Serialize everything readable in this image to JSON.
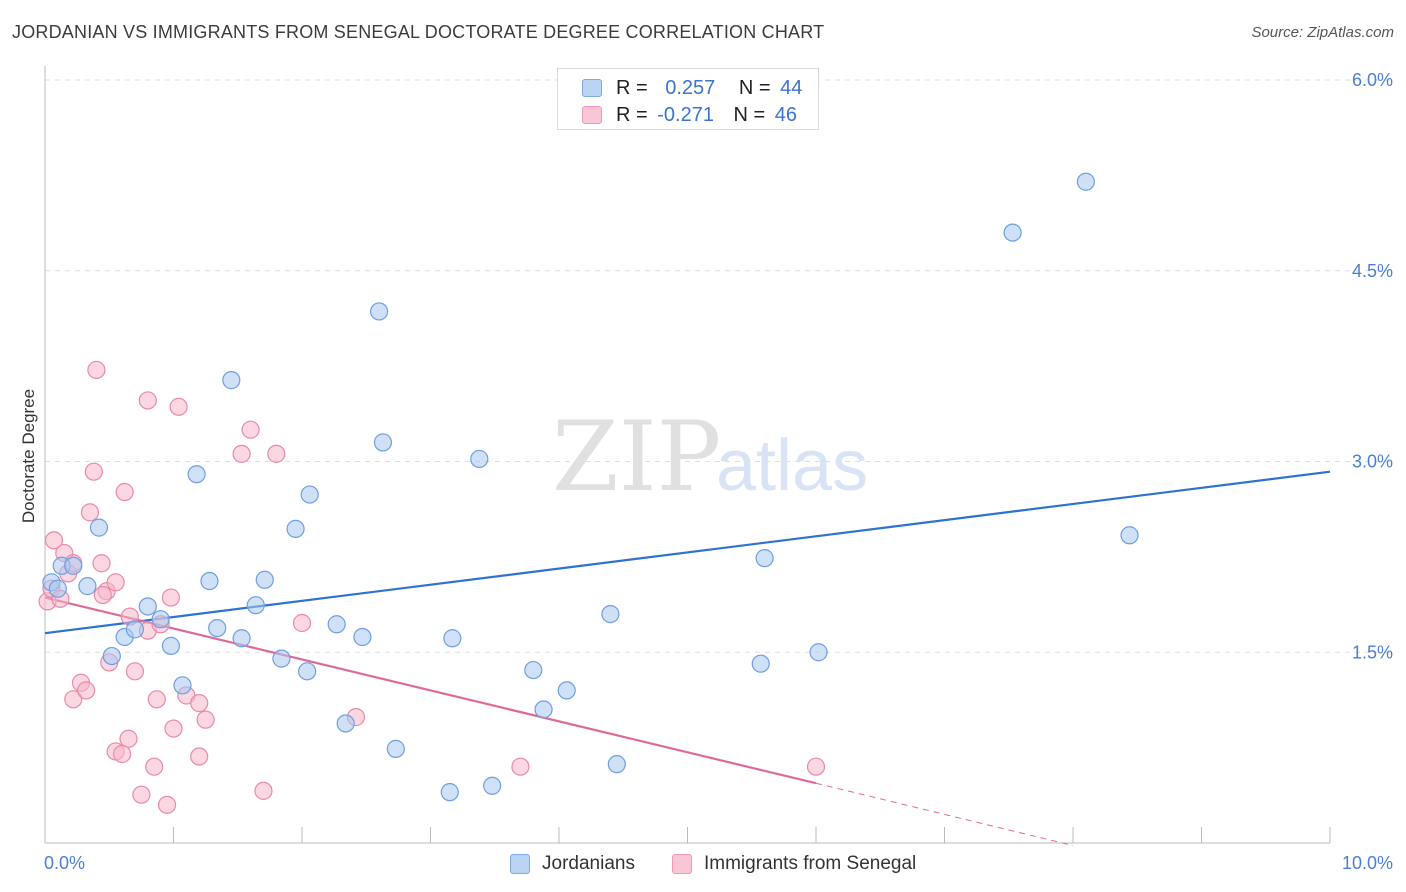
{
  "header": {
    "title": "JORDANIAN VS IMMIGRANTS FROM SENEGAL DOCTORATE DEGREE CORRELATION CHART",
    "source": "Source: ZipAtlas.com"
  },
  "watermark": {
    "zip": "ZIP",
    "atlas": "atlas"
  },
  "legend": {
    "r_label": "R =",
    "n_label": "N =",
    "rows": [
      {
        "r": "0.257",
        "n": "44"
      },
      {
        "r": "-0.271",
        "n": "46"
      }
    ]
  },
  "bottom_legend": {
    "items": [
      {
        "label": "Jordanians"
      },
      {
        "label": "Immigrants from Senegal"
      }
    ]
  },
  "colors": {
    "blue_fill": "#a9c8f0",
    "blue_stroke": "#6d9fe0",
    "blue_line": "#2f72d0",
    "pink_fill": "#f7b6ca",
    "pink_stroke": "#e98aa8",
    "pink_line": "#e0699a",
    "axis_tick": "#4a7fd4",
    "grid": "#dddddd"
  },
  "chart_data": {
    "type": "scatter",
    "title": "JORDANIAN VS IMMIGRANTS FROM SENEGAL DOCTORATE DEGREE CORRELATION CHART",
    "xlabel": "",
    "ylabel": "Doctorate Degree",
    "xlim": [
      0,
      10
    ],
    "ylim": [
      0,
      6
    ],
    "x_ticks": [
      {
        "value": 0,
        "label": "0.0%"
      },
      {
        "value": 10,
        "label": "10.0%"
      }
    ],
    "y_ticks": [
      {
        "value": 1.5,
        "label": "1.5%"
      },
      {
        "value": 3.0,
        "label": "3.0%"
      },
      {
        "value": 4.5,
        "label": "4.5%"
      },
      {
        "value": 6.0,
        "label": "6.0%"
      }
    ],
    "grid": true,
    "legend_position": "top-center",
    "series": [
      {
        "name": "Jordanians",
        "color": "#a9c8f0",
        "r": 0.257,
        "n": 44,
        "trend": {
          "x0": 0,
          "y0": 1.65,
          "x1": 10,
          "y1": 2.92,
          "dashed_from": null
        },
        "points": [
          {
            "x": 0.05,
            "y": 2.05
          },
          {
            "x": 0.1,
            "y": 2.0
          },
          {
            "x": 0.13,
            "y": 2.18
          },
          {
            "x": 0.22,
            "y": 2.18
          },
          {
            "x": 0.33,
            "y": 2.02
          },
          {
            "x": 0.42,
            "y": 2.48
          },
          {
            "x": 0.52,
            "y": 1.47
          },
          {
            "x": 0.62,
            "y": 1.62
          },
          {
            "x": 0.7,
            "y": 1.68
          },
          {
            "x": 0.8,
            "y": 1.86
          },
          {
            "x": 0.9,
            "y": 1.76
          },
          {
            "x": 0.98,
            "y": 1.55
          },
          {
            "x": 1.07,
            "y": 1.24
          },
          {
            "x": 1.18,
            "y": 2.9
          },
          {
            "x": 1.28,
            "y": 2.06
          },
          {
            "x": 1.34,
            "y": 1.69
          },
          {
            "x": 1.45,
            "y": 3.64
          },
          {
            "x": 1.53,
            "y": 1.61
          },
          {
            "x": 1.64,
            "y": 1.87
          },
          {
            "x": 1.71,
            "y": 2.07
          },
          {
            "x": 1.84,
            "y": 1.45
          },
          {
            "x": 1.95,
            "y": 2.47
          },
          {
            "x": 2.04,
            "y": 1.35
          },
          {
            "x": 2.06,
            "y": 2.74
          },
          {
            "x": 2.27,
            "y": 1.72
          },
          {
            "x": 2.34,
            "y": 0.94
          },
          {
            "x": 2.47,
            "y": 1.62
          },
          {
            "x": 2.6,
            "y": 4.18
          },
          {
            "x": 2.63,
            "y": 3.15
          },
          {
            "x": 2.73,
            "y": 0.74
          },
          {
            "x": 3.15,
            "y": 0.4
          },
          {
            "x": 3.17,
            "y": 1.61
          },
          {
            "x": 3.38,
            "y": 3.02
          },
          {
            "x": 3.48,
            "y": 0.45
          },
          {
            "x": 3.8,
            "y": 1.36
          },
          {
            "x": 3.88,
            "y": 1.05
          },
          {
            "x": 4.06,
            "y": 1.2
          },
          {
            "x": 4.4,
            "y": 1.8
          },
          {
            "x": 4.45,
            "y": 0.62
          },
          {
            "x": 5.57,
            "y": 1.41
          },
          {
            "x": 5.6,
            "y": 2.24
          },
          {
            "x": 6.02,
            "y": 1.5
          },
          {
            "x": 7.53,
            "y": 4.8
          },
          {
            "x": 8.1,
            "y": 5.2
          },
          {
            "x": 8.44,
            "y": 2.42
          }
        ]
      },
      {
        "name": "Immigrants from Senegal",
        "color": "#f7b6ca",
        "r": -0.271,
        "n": 46,
        "trend": {
          "x0": 0,
          "y0": 1.93,
          "x1": 6.0,
          "y1": 0.47,
          "x_dash_end": 8.0,
          "y_dash_end": -0.02
        },
        "points": [
          {
            "x": 0.02,
            "y": 1.9
          },
          {
            "x": 0.05,
            "y": 2.0
          },
          {
            "x": 0.07,
            "y": 2.38
          },
          {
            "x": 0.12,
            "y": 1.92
          },
          {
            "x": 0.15,
            "y": 2.28
          },
          {
            "x": 0.18,
            "y": 2.12
          },
          {
            "x": 0.22,
            "y": 2.2
          },
          {
            "x": 0.22,
            "y": 1.13
          },
          {
            "x": 0.28,
            "y": 1.26
          },
          {
            "x": 0.32,
            "y": 1.2
          },
          {
            "x": 0.35,
            "y": 2.6
          },
          {
            "x": 0.38,
            "y": 2.92
          },
          {
            "x": 0.4,
            "y": 3.72
          },
          {
            "x": 0.44,
            "y": 2.2
          },
          {
            "x": 0.48,
            "y": 1.98
          },
          {
            "x": 0.5,
            "y": 1.42
          },
          {
            "x": 0.55,
            "y": 2.05
          },
          {
            "x": 0.55,
            "y": 0.72
          },
          {
            "x": 0.6,
            "y": 0.7
          },
          {
            "x": 0.62,
            "y": 2.76
          },
          {
            "x": 0.65,
            "y": 0.82
          },
          {
            "x": 0.66,
            "y": 1.78
          },
          {
            "x": 0.7,
            "y": 1.35
          },
          {
            "x": 0.75,
            "y": 0.38
          },
          {
            "x": 0.8,
            "y": 1.67
          },
          {
            "x": 0.8,
            "y": 3.48
          },
          {
            "x": 0.85,
            "y": 0.6
          },
          {
            "x": 0.87,
            "y": 1.13
          },
          {
            "x": 0.95,
            "y": 0.3
          },
          {
            "x": 0.98,
            "y": 1.93
          },
          {
            "x": 1.0,
            "y": 0.9
          },
          {
            "x": 1.04,
            "y": 3.43
          },
          {
            "x": 1.1,
            "y": 1.16
          },
          {
            "x": 1.2,
            "y": 1.1
          },
          {
            "x": 1.2,
            "y": 0.68
          },
          {
            "x": 1.25,
            "y": 0.97
          },
          {
            "x": 1.53,
            "y": 3.06
          },
          {
            "x": 1.6,
            "y": 3.25
          },
          {
            "x": 1.8,
            "y": 3.06
          },
          {
            "x": 1.7,
            "y": 0.41
          },
          {
            "x": 2.0,
            "y": 1.73
          },
          {
            "x": 2.42,
            "y": 0.99
          },
          {
            "x": 3.7,
            "y": 0.6
          },
          {
            "x": 6.0,
            "y": 0.6
          },
          {
            "x": 0.9,
            "y": 1.72
          },
          {
            "x": 0.45,
            "y": 1.95
          }
        ]
      }
    ]
  }
}
